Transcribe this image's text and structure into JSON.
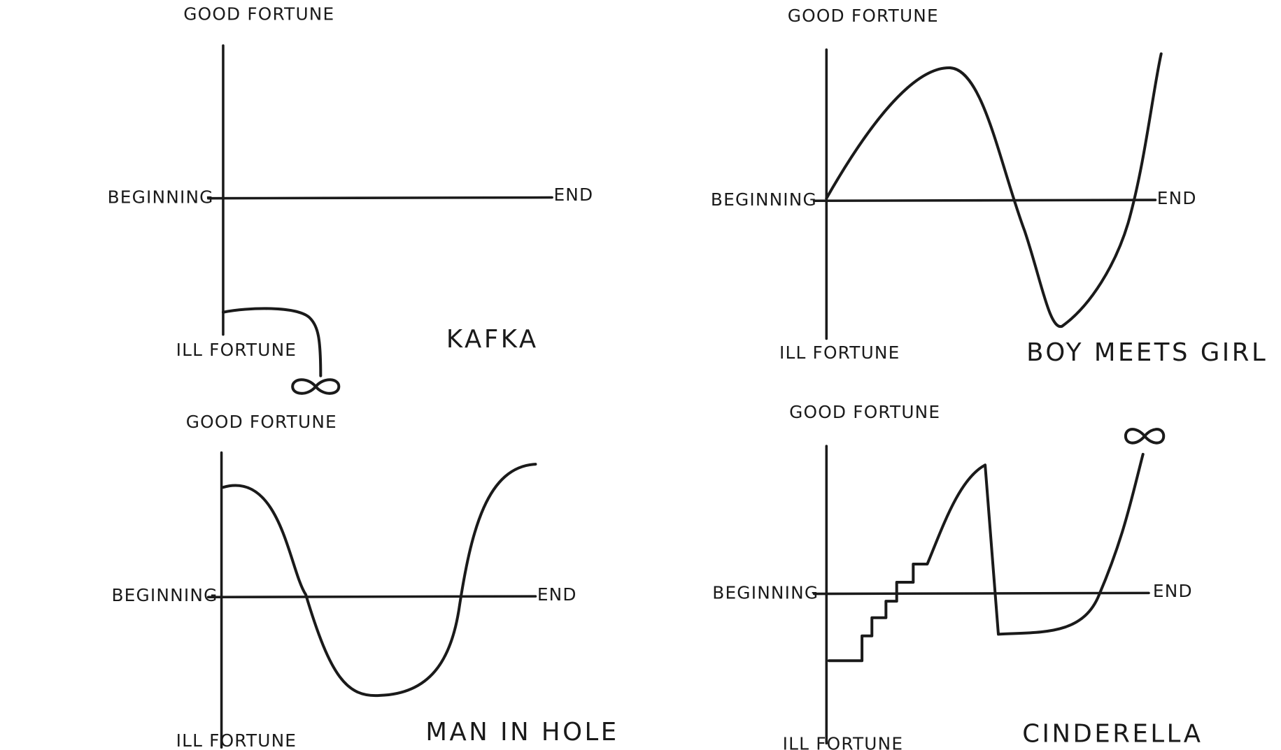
{
  "panels": [
    {
      "top_label": "GOOD FORTUNE",
      "start_label": "BEGINNING",
      "end_label": "END",
      "bottom_label": "ILL FORTUNE",
      "title": "KAFKA"
    },
    {
      "top_label": "GOOD FORTUNE",
      "start_label": "BEGINNING",
      "end_label": "END",
      "bottom_label": "ILL FORTUNE",
      "title": "BOY MEETS GIRL"
    },
    {
      "top_label": "GOOD FORTUNE",
      "start_label": "BEGINNING",
      "end_label": "END",
      "bottom_label": "ILL FORTUNE",
      "title": "MAN IN HOLE"
    },
    {
      "top_label": "GOOD FORTUNE",
      "start_label": "BEGINNING",
      "end_label": "END",
      "bottom_label": "ILL FORTUNE",
      "title": "CINDERELLA"
    }
  ]
}
